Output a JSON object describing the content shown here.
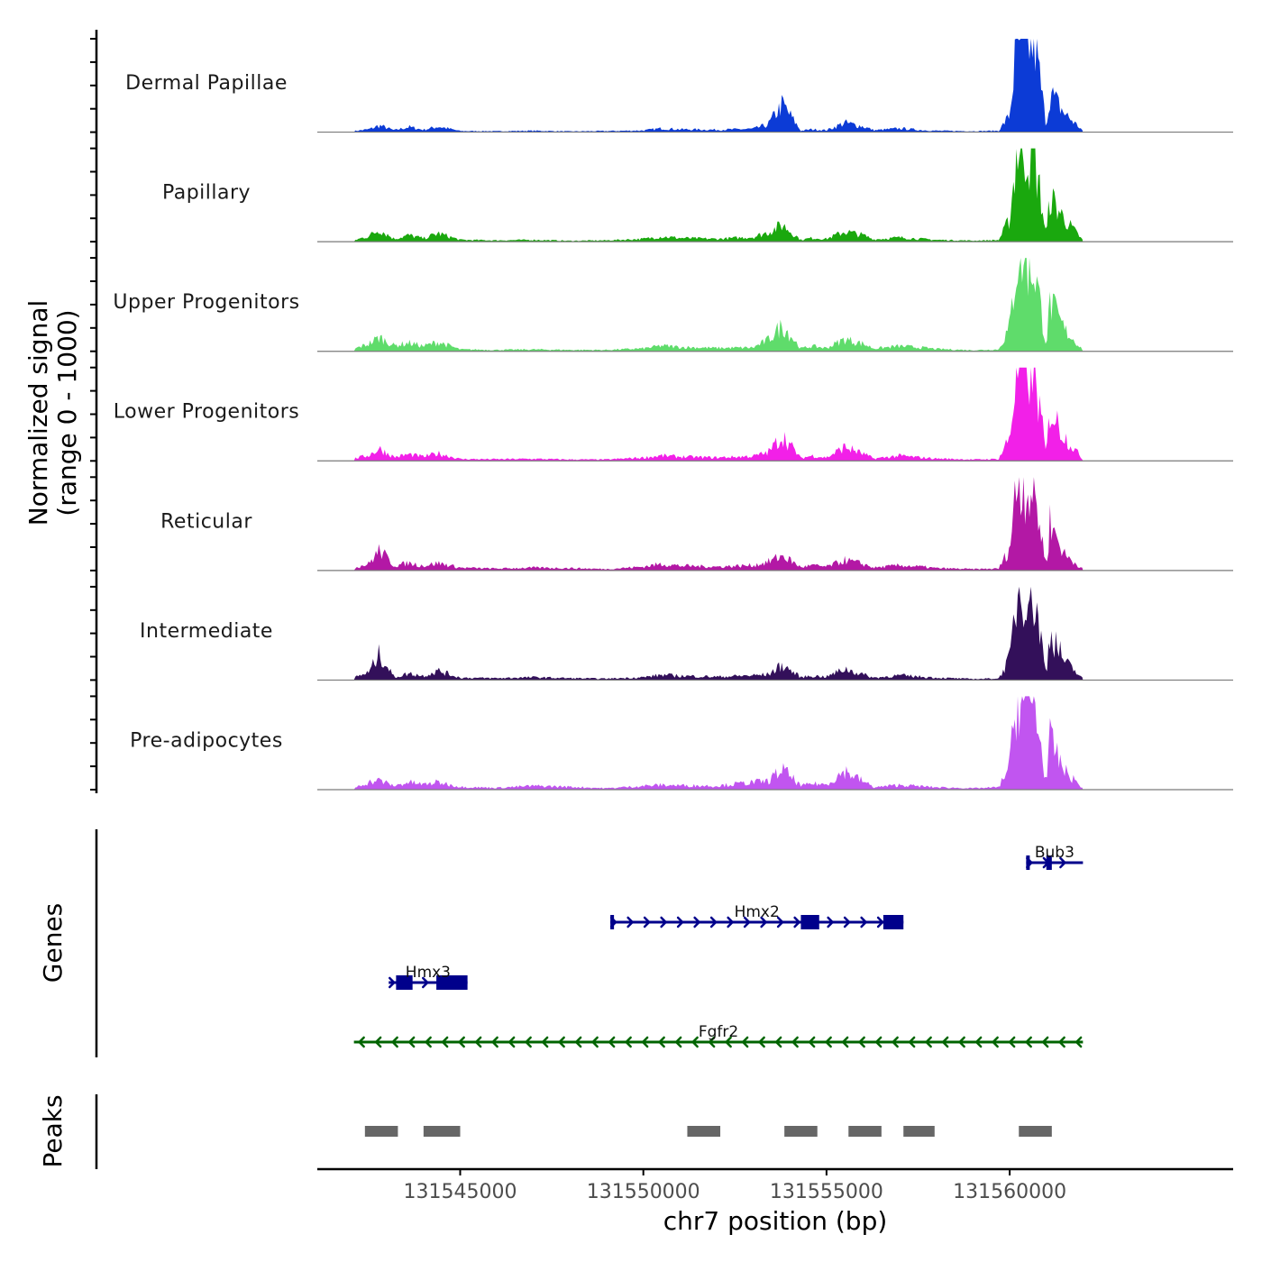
{
  "chart_data": {
    "type": "area",
    "title": "",
    "xlabel": "chr7 position (bp)",
    "ylabel": "Normalized signal\n(range 0 - 1000)",
    "xlim": [
      131541100,
      131566100
    ],
    "ylim": [
      0,
      1000
    ],
    "x_ticks": [
      {
        "value": 131545000,
        "label": "131545000"
      },
      {
        "value": 131550000,
        "label": "131550000"
      },
      {
        "value": 131555000,
        "label": "131555000"
      },
      {
        "value": 131560000,
        "label": "131560000"
      }
    ],
    "coverage_knots": [
      131542100,
      131542500,
      131542800,
      131543200,
      131543600,
      131544000,
      131544400,
      131545000,
      131546000,
      131547000,
      131548000,
      131549000,
      131550000,
      131550500,
      131551000,
      131552000,
      131553000,
      131553400,
      131553800,
      131554300,
      131554600,
      131555000,
      131555500,
      131556000,
      131556300,
      131557000,
      131557600,
      131558000,
      131559000,
      131559700,
      131560000,
      131560200,
      131560400,
      131560700,
      131561000,
      131561100,
      131561500,
      131562000
    ],
    "series": [
      {
        "name": "Dermal Papillae",
        "color": "#0c3bd6",
        "values": [
          12,
          30,
          70,
          20,
          55,
          25,
          60,
          12,
          10,
          15,
          8,
          12,
          18,
          40,
          30,
          25,
          35,
          80,
          300,
          15,
          30,
          20,
          100,
          60,
          20,
          40,
          22,
          15,
          10,
          15,
          180,
          980,
          1000,
          930,
          60,
          420,
          200,
          15
        ]
      },
      {
        "name": "Papillary",
        "color": "#1aa80e",
        "values": [
          15,
          60,
          130,
          30,
          70,
          35,
          90,
          20,
          15,
          20,
          10,
          15,
          30,
          55,
          40,
          30,
          50,
          100,
          180,
          20,
          40,
          30,
          110,
          70,
          25,
          45,
          30,
          20,
          12,
          18,
          240,
          1000,
          980,
          860,
          60,
          480,
          240,
          15
        ]
      },
      {
        "name": "Upper Progenitors",
        "color": "#5fdc6b",
        "values": [
          25,
          80,
          150,
          60,
          90,
          55,
          100,
          20,
          15,
          20,
          15,
          15,
          30,
          60,
          45,
          35,
          40,
          120,
          280,
          30,
          55,
          35,
          130,
          80,
          30,
          55,
          40,
          25,
          12,
          20,
          260,
          1000,
          1000,
          850,
          60,
          520,
          230,
          15
        ]
      },
      {
        "name": "Lower Progenitors",
        "color": "#f220e8",
        "values": [
          25,
          60,
          130,
          40,
          70,
          45,
          80,
          20,
          18,
          22,
          15,
          15,
          35,
          55,
          45,
          35,
          50,
          90,
          270,
          30,
          55,
          35,
          150,
          75,
          25,
          55,
          35,
          25,
          15,
          20,
          260,
          1000,
          1000,
          880,
          60,
          560,
          260,
          15
        ]
      },
      {
        "name": "Reticular",
        "color": "#b318a5",
        "values": [
          30,
          70,
          220,
          50,
          80,
          50,
          80,
          30,
          20,
          30,
          25,
          15,
          40,
          70,
          50,
          40,
          55,
          90,
          160,
          35,
          55,
          40,
          110,
          70,
          30,
          55,
          40,
          25,
          15,
          20,
          240,
          960,
          900,
          780,
          50,
          520,
          170,
          15
        ]
      },
      {
        "name": "Intermediate",
        "color": "#33105a",
        "values": [
          30,
          80,
          280,
          30,
          70,
          45,
          100,
          25,
          20,
          30,
          20,
          15,
          30,
          55,
          45,
          35,
          50,
          60,
          160,
          30,
          45,
          35,
          120,
          60,
          25,
          50,
          35,
          25,
          12,
          18,
          230,
          920,
          1000,
          860,
          50,
          530,
          200,
          15
        ]
      },
      {
        "name": "Pre-adipocytes",
        "color": "#c155f0",
        "values": [
          20,
          80,
          100,
          40,
          80,
          55,
          80,
          30,
          20,
          40,
          30,
          15,
          40,
          50,
          45,
          40,
          80,
          90,
          220,
          40,
          65,
          55,
          200,
          90,
          25,
          50,
          35,
          25,
          15,
          25,
          270,
          1000,
          1000,
          880,
          60,
          530,
          200,
          15
        ]
      }
    ],
    "genes": [
      {
        "name": "Bub3",
        "strand": "+",
        "start": 131560450,
        "end": 131562000,
        "row": 1,
        "color": "#00008b",
        "exons": [
          [
            131560450,
            131560500
          ],
          [
            131561000,
            131561150
          ]
        ]
      },
      {
        "name": "Hmx2",
        "strand": "+",
        "start": 131549100,
        "end": 131557100,
        "row": 2,
        "color": "#00008b",
        "exons": [
          [
            131549100,
            131549150
          ],
          [
            131554300,
            131554800
          ],
          [
            131556550,
            131557100
          ]
        ]
      },
      {
        "name": "Hmx3",
        "strand": "+",
        "start": 131543050,
        "end": 131545200,
        "row": 3,
        "color": "#00008b",
        "exons": [
          [
            131543250,
            131543700
          ],
          [
            131544350,
            131545200
          ]
        ]
      },
      {
        "name": "Fgfr2",
        "strand": "-",
        "start": 131542100,
        "end": 131562000,
        "row": 4,
        "color": "#006400",
        "exons": []
      }
    ],
    "peaks": [
      [
        131542400,
        131543300
      ],
      [
        131544000,
        131545000
      ],
      [
        131551200,
        131552100
      ],
      [
        131553850,
        131554750
      ],
      [
        131555600,
        131556500
      ],
      [
        131557100,
        131557950
      ],
      [
        131560250,
        131561150
      ]
    ],
    "panel_labels": {
      "genes": "Genes",
      "peaks": "Peaks"
    },
    "colors": {
      "peak": "#666666",
      "axis": "#000000",
      "baseline": "#7a7a7a",
      "tick_label": "#4d4d4d"
    }
  }
}
